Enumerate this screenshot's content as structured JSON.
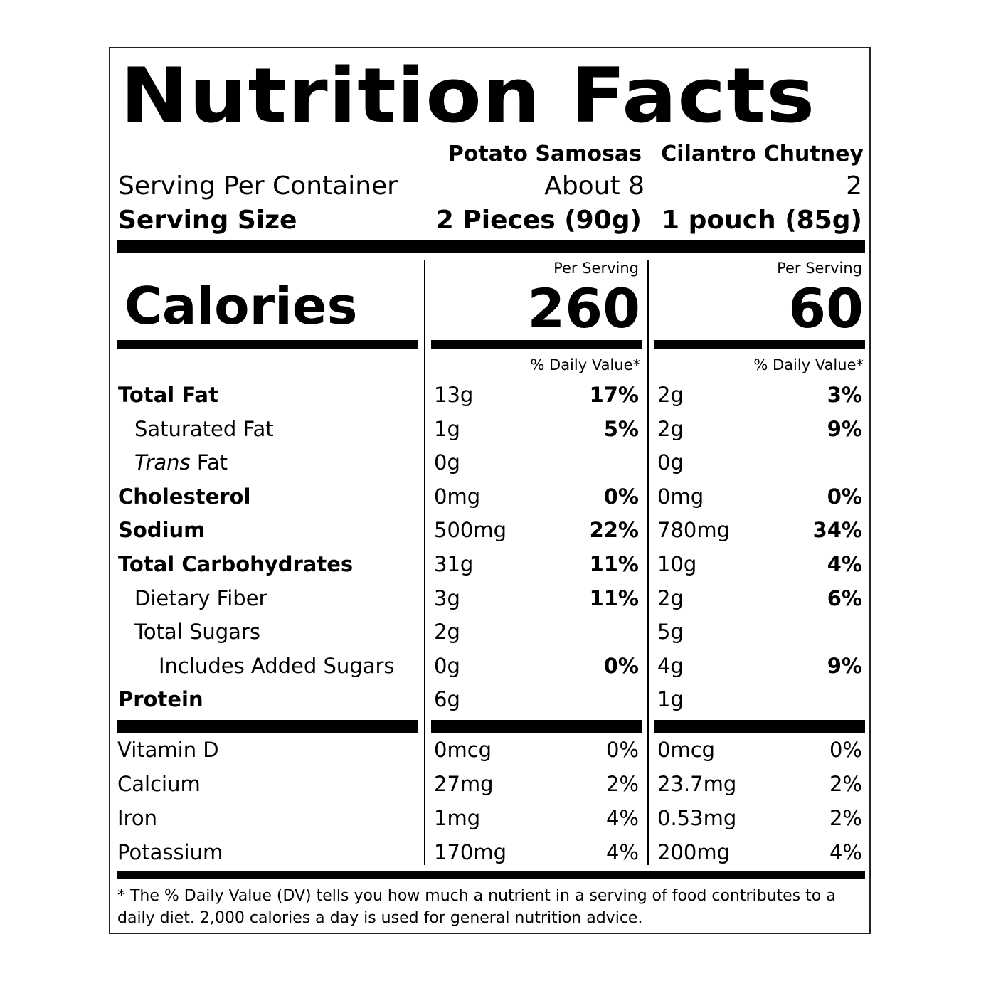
{
  "title": "Nutrition Facts",
  "products": [
    {
      "name": "Potato Samosas",
      "servings_per_container": "About 8",
      "serving_size": "2 Pieces (90g)",
      "per_serving_label": "Per Serving",
      "calories": "260",
      "dv_label": "% Daily Value*"
    },
    {
      "name": "Cilantro Chutney",
      "servings_per_container": "2",
      "serving_size": "1 pouch (85g)",
      "per_serving_label": "Per Serving",
      "calories": "60",
      "dv_label": "% Daily Value*"
    }
  ],
  "servings_label": "Serving Per Container",
  "serving_size_label": "Serving Size",
  "calories_label": "Calories",
  "nutrients": [
    {
      "label": "Total Fat",
      "italic_prefix": "",
      "style": "bold",
      "indent": 0,
      "p1_amount": "13g",
      "p1_dv": "17%",
      "p2_amount": "2g",
      "p2_dv": "3%"
    },
    {
      "label": "Saturated Fat",
      "italic_prefix": "",
      "style": "normal",
      "indent": 1,
      "p1_amount": "1g",
      "p1_dv": "5%",
      "p2_amount": "2g",
      "p2_dv": "9%"
    },
    {
      "label": "Fat",
      "italic_prefix": "Trans",
      "style": "normal",
      "indent": 1,
      "p1_amount": "0g",
      "p1_dv": "",
      "p2_amount": "0g",
      "p2_dv": ""
    },
    {
      "label": "Cholesterol",
      "italic_prefix": "",
      "style": "bold",
      "indent": 0,
      "p1_amount": "0mg",
      "p1_dv": "0%",
      "p2_amount": "0mg",
      "p2_dv": "0%"
    },
    {
      "label": "Sodium",
      "italic_prefix": "",
      "style": "bold",
      "indent": 0,
      "p1_amount": "500mg",
      "p1_dv": "22%",
      "p2_amount": "780mg",
      "p2_dv": "34%"
    },
    {
      "label": "Total Carbohydrates",
      "italic_prefix": "",
      "style": "bold",
      "indent": 0,
      "p1_amount": "31g",
      "p1_dv": "11%",
      "p2_amount": "10g",
      "p2_dv": "4%"
    },
    {
      "label": "Dietary Fiber",
      "italic_prefix": "",
      "style": "normal",
      "indent": 1,
      "p1_amount": "3g",
      "p1_dv": "11%",
      "p2_amount": "2g",
      "p2_dv": "6%"
    },
    {
      "label": "Total Sugars",
      "italic_prefix": "",
      "style": "normal",
      "indent": 1,
      "p1_amount": "2g",
      "p1_dv": "",
      "p2_amount": "5g",
      "p2_dv": ""
    },
    {
      "label": "Includes Added Sugars",
      "italic_prefix": "",
      "style": "normal",
      "indent": 2,
      "p1_amount": "0g",
      "p1_dv": "0%",
      "p2_amount": "4g",
      "p2_dv": "9%"
    },
    {
      "label": "Protein",
      "italic_prefix": "",
      "style": "bold",
      "indent": 0,
      "p1_amount": "6g",
      "p1_dv": "",
      "p2_amount": "1g",
      "p2_dv": ""
    }
  ],
  "vitamins": [
    {
      "label": "Vitamin D",
      "p1_amount": "0mcg",
      "p1_dv": "0%",
      "p2_amount": "0mcg",
      "p2_dv": "0%"
    },
    {
      "label": "Calcium",
      "p1_amount": "27mg",
      "p1_dv": "2%",
      "p2_amount": "23.7mg",
      "p2_dv": "2%"
    },
    {
      "label": "Iron",
      "p1_amount": "1mg",
      "p1_dv": "4%",
      "p2_amount": "0.53mg",
      "p2_dv": "2%"
    },
    {
      "label": "Potassium",
      "p1_amount": "170mg",
      "p1_dv": "4%",
      "p2_amount": "200mg",
      "p2_dv": "4%"
    }
  ],
  "footnote": "* The % Daily Value (DV) tells you how much a nutrient in a serving of food contributes to a daily diet. 2,000 calories a day is used for general nutrition advice."
}
